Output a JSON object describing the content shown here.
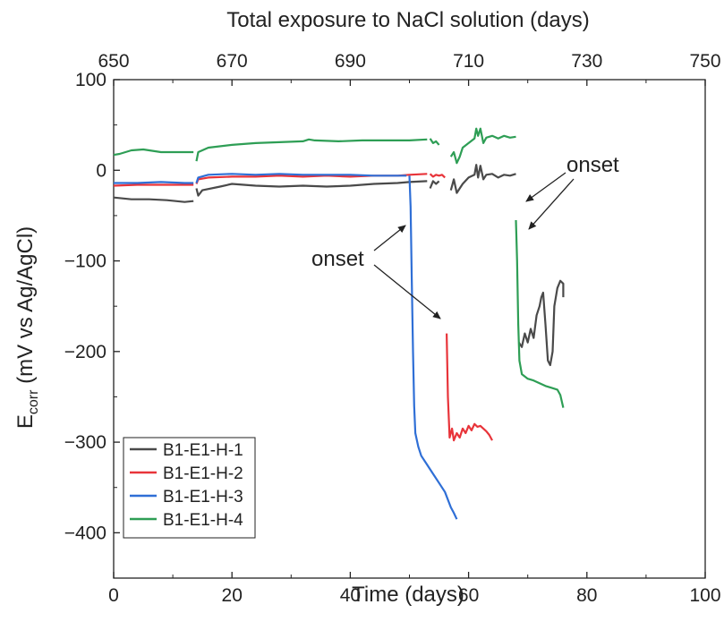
{
  "chart_data": {
    "type": "line",
    "xlabel": "Time (days)",
    "ylabel_main": "E",
    "ylabel_sub": "corr",
    "ylabel_rest": " (mV vs Ag/AgCl)",
    "top_axis_label": "Total exposure to NaCl solution (days)",
    "xlim": [
      0,
      100
    ],
    "ylim": [
      -450,
      100
    ],
    "top_xlim": [
      650,
      750
    ],
    "x_ticks": [
      "0",
      "20",
      "40",
      "60",
      "80",
      "100"
    ],
    "y_ticks": [
      "100",
      "0",
      "−100",
      "−200",
      "−300",
      "−400"
    ],
    "top_ticks": [
      "650",
      "670",
      "690",
      "710",
      "730",
      "750"
    ],
    "legend_position": "bottom-left",
    "annotations": [
      {
        "text": "onset"
      },
      {
        "text": "onset"
      }
    ],
    "series": [
      {
        "name": "B1-E1-H-1",
        "color": "#4a4a4a",
        "segments": [
          [
            [
              0,
              -30
            ],
            [
              3,
              -32
            ],
            [
              6,
              -32
            ],
            [
              9,
              -33
            ],
            [
              12,
              -35
            ],
            [
              13.5,
              -34
            ]
          ],
          [
            [
              14,
              -20
            ],
            [
              14.3,
              -28
            ],
            [
              15,
              -22
            ],
            [
              18,
              -18
            ],
            [
              20,
              -15
            ],
            [
              24,
              -17
            ],
            [
              28,
              -18
            ],
            [
              32,
              -17
            ],
            [
              36,
              -18
            ],
            [
              40,
              -17
            ],
            [
              44,
              -15
            ],
            [
              48,
              -14
            ],
            [
              50,
              -13
            ],
            [
              53,
              -12
            ]
          ],
          [
            [
              53.5,
              -20
            ],
            [
              54,
              -12
            ],
            [
              54.5,
              -15
            ],
            [
              55,
              -12
            ]
          ],
          [
            [
              57,
              -22
            ],
            [
              57.5,
              -10
            ],
            [
              58,
              -25
            ],
            [
              58.5,
              -20
            ],
            [
              59,
              -15
            ],
            [
              60,
              -8
            ],
            [
              61,
              -5
            ],
            [
              61.3,
              6
            ],
            [
              61.6,
              -8
            ],
            [
              62,
              5
            ],
            [
              62.5,
              -10
            ],
            [
              63,
              -5
            ],
            [
              64,
              -4
            ],
            [
              65,
              -8
            ],
            [
              66,
              -5
            ],
            [
              67,
              -6
            ],
            [
              68,
              -4
            ]
          ],
          [
            [
              68.5,
              -190
            ],
            [
              69,
              -195
            ],
            [
              69.5,
              -180
            ],
            [
              70,
              -190
            ],
            [
              70.5,
              -175
            ],
            [
              71,
              -185
            ],
            [
              71.5,
              -160
            ],
            [
              72,
              -150
            ],
            [
              72.3,
              -140
            ],
            [
              72.6,
              -135
            ],
            [
              73,
              -170
            ],
            [
              73.4,
              -210
            ],
            [
              73.8,
              -215
            ],
            [
              74.2,
              -200
            ],
            [
              74.5,
              -150
            ],
            [
              75,
              -130
            ],
            [
              75.5,
              -122
            ],
            [
              76,
              -125
            ],
            [
              76,
              -140
            ]
          ]
        ]
      },
      {
        "name": "B1-E1-H-2",
        "color": "#e8343a",
        "segments": [
          [
            [
              0,
              -17
            ],
            [
              4,
              -16
            ],
            [
              8,
              -16
            ],
            [
              12,
              -16
            ],
            [
              13.5,
              -16
            ]
          ],
          [
            [
              14,
              -15
            ],
            [
              14.3,
              -10
            ],
            [
              16,
              -8
            ],
            [
              20,
              -7
            ],
            [
              24,
              -7
            ],
            [
              28,
              -6
            ],
            [
              32,
              -7
            ],
            [
              36,
              -6
            ],
            [
              40,
              -7
            ],
            [
              44,
              -6
            ],
            [
              48,
              -6
            ],
            [
              50,
              -5
            ],
            [
              53,
              -4
            ]
          ],
          [
            [
              53.5,
              -4
            ],
            [
              54,
              -7
            ],
            [
              54.5,
              -5
            ],
            [
              55,
              -6
            ],
            [
              55.5,
              -5
            ],
            [
              56,
              -8
            ]
          ],
          [
            [
              56.3,
              -180
            ],
            [
              56.5,
              -250
            ],
            [
              56.8,
              -295
            ],
            [
              57.2,
              -285
            ],
            [
              57.5,
              -298
            ],
            [
              58,
              -290
            ],
            [
              58.5,
              -295
            ],
            [
              59,
              -285
            ],
            [
              59.5,
              -290
            ],
            [
              60,
              -282
            ],
            [
              60.5,
              -287
            ],
            [
              61,
              -280
            ],
            [
              61.5,
              -283
            ],
            [
              62,
              -282
            ],
            [
              62.5,
              -285
            ],
            [
              63,
              -288
            ],
            [
              63.5,
              -292
            ],
            [
              64,
              -298
            ]
          ]
        ]
      },
      {
        "name": "B1-E1-H-3",
        "color": "#2f6fd6",
        "segments": [
          [
            [
              0,
              -14
            ],
            [
              4,
              -14
            ],
            [
              8,
              -13
            ],
            [
              12,
              -14
            ],
            [
              13.5,
              -14
            ]
          ],
          [
            [
              14,
              -14
            ],
            [
              14.3,
              -8
            ],
            [
              16,
              -5
            ],
            [
              20,
              -4
            ],
            [
              24,
              -5
            ],
            [
              28,
              -4
            ],
            [
              32,
              -5
            ],
            [
              36,
              -5
            ],
            [
              40,
              -5
            ],
            [
              44,
              -6
            ],
            [
              48,
              -6
            ],
            [
              49.5,
              -6
            ]
          ],
          [
            [
              50,
              -6
            ],
            [
              50.2,
              -40
            ],
            [
              50.4,
              -120
            ],
            [
              50.6,
              -200
            ],
            [
              50.8,
              -260
            ],
            [
              51,
              -290
            ],
            [
              51.5,
              -305
            ],
            [
              52,
              -315
            ],
            [
              53,
              -325
            ],
            [
              54,
              -335
            ],
            [
              55,
              -345
            ],
            [
              56,
              -355
            ],
            [
              57,
              -372
            ],
            [
              57.5,
              -378
            ],
            [
              58,
              -385
            ]
          ]
        ]
      },
      {
        "name": "B1-E1-H-4",
        "color": "#2e9e55",
        "segments": [
          [
            [
              0,
              17
            ],
            [
              1,
              18
            ],
            [
              3,
              22
            ],
            [
              5,
              23
            ],
            [
              8,
              20
            ],
            [
              10,
              20
            ],
            [
              13.5,
              20
            ]
          ],
          [
            [
              14,
              10
            ],
            [
              14.3,
              20
            ],
            [
              16,
              25
            ],
            [
              20,
              28
            ],
            [
              24,
              30
            ],
            [
              28,
              31
            ],
            [
              32,
              32
            ],
            [
              33,
              34
            ],
            [
              34,
              33
            ],
            [
              38,
              32
            ],
            [
              42,
              33
            ],
            [
              46,
              33
            ],
            [
              50,
              33
            ],
            [
              53,
              34
            ]
          ],
          [
            [
              53.5,
              35
            ],
            [
              54,
              30
            ],
            [
              54.5,
              32
            ],
            [
              55,
              28
            ]
          ],
          [
            [
              57,
              15
            ],
            [
              57.5,
              20
            ],
            [
              58,
              8
            ],
            [
              58.5,
              15
            ],
            [
              59,
              25
            ],
            [
              60,
              30
            ],
            [
              61,
              35
            ],
            [
              61.3,
              46
            ],
            [
              61.6,
              38
            ],
            [
              62,
              46
            ],
            [
              62.5,
              30
            ],
            [
              63,
              36
            ],
            [
              64,
              38
            ],
            [
              65,
              35
            ],
            [
              66,
              38
            ],
            [
              67,
              36
            ],
            [
              68,
              37
            ]
          ],
          [
            [
              68,
              -55
            ],
            [
              68.2,
              -100
            ],
            [
              68.4,
              -170
            ],
            [
              68.6,
              -210
            ],
            [
              69,
              -225
            ],
            [
              70,
              -230
            ],
            [
              71,
              -232
            ],
            [
              72,
              -235
            ],
            [
              73,
              -238
            ],
            [
              74,
              -240
            ],
            [
              75,
              -242
            ],
            [
              75.5,
              -248
            ],
            [
              76,
              -262
            ]
          ]
        ]
      }
    ]
  }
}
